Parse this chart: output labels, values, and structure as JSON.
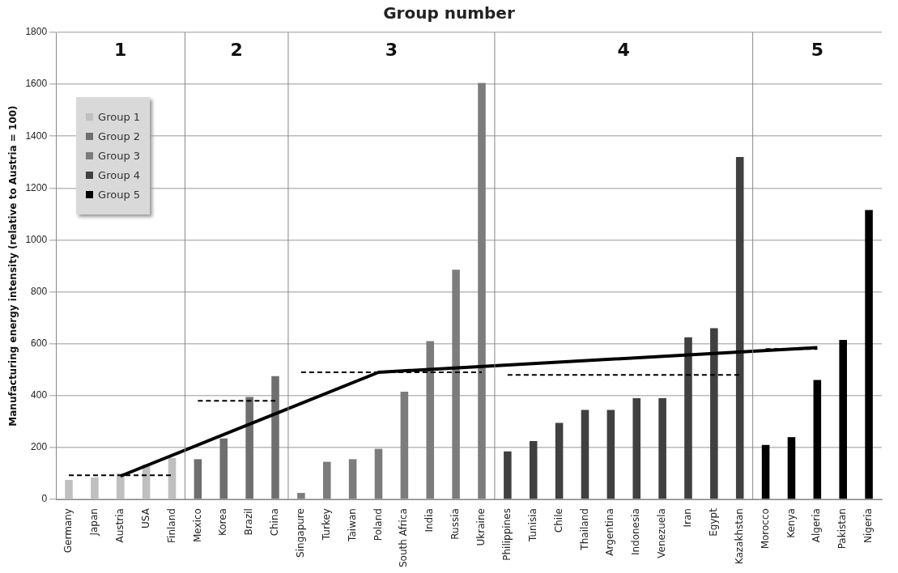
{
  "chart_data": {
    "type": "bar",
    "title": "Group number",
    "ylabel": "Manufacturing energy intensity (relative to Austria = 100)",
    "categories": [
      "Germany",
      "Japan",
      "Austria",
      "USA",
      "Finland",
      "Mexico",
      "Korea",
      "Brazil",
      "China",
      "Singapure",
      "Turkey",
      "Taiwan",
      "Poland",
      "South Africa",
      "India",
      "Russia",
      "Ukraine",
      "Philippines",
      "Tunisia",
      "Chile",
      "Thailand",
      "Argentina",
      "Indonesia",
      "Venezuela",
      "Iran",
      "Egypt",
      "Kazakhstan",
      "Morocco",
      "Kenya",
      "Algeria",
      "Pakistan",
      "Nigeria"
    ],
    "series": [
      {
        "name": "Group 1",
        "color": "#bfbfbf",
        "x": [
          "Germany",
          "Japan",
          "Austria",
          "USA",
          "Finland"
        ],
        "values": [
          75,
          85,
          100,
          135,
          160
        ]
      },
      {
        "name": "Group 2",
        "color": "#6f6f6f",
        "x": [
          "Mexico",
          "Korea",
          "Brazil",
          "China"
        ],
        "values": [
          155,
          235,
          395,
          475
        ]
      },
      {
        "name": "Group 3",
        "color": "#7c7c7c",
        "x": [
          "Singapure",
          "Turkey",
          "Taiwan",
          "Poland",
          "South Africa",
          "India",
          "Russia",
          "Ukraine"
        ],
        "values": [
          25,
          145,
          155,
          195,
          415,
          610,
          885,
          1605
        ]
      },
      {
        "name": "Group 4",
        "color": "#404040",
        "x": [
          "Philippines",
          "Tunisia",
          "Chile",
          "Thailand",
          "Argentina",
          "Indonesia",
          "Venezuela",
          "Iran",
          "Egypt",
          "Kazakhstan"
        ],
        "values": [
          185,
          225,
          295,
          345,
          345,
          390,
          390,
          625,
          660,
          1320
        ]
      },
      {
        "name": "Group 5",
        "color": "#000000",
        "x": [
          "Morocco",
          "Kenya",
          "Algeria",
          "Pakistan",
          "Nigeria"
        ],
        "values": [
          210,
          240,
          460,
          615,
          1115
        ]
      },
      {
        "type": "line",
        "color": "#000000",
        "line_style": "solid",
        "x": [
          "Austria",
          "Poland",
          "Algeria"
        ],
        "values": [
          90,
          490,
          585
        ]
      },
      {
        "type": "line",
        "color": "#000000",
        "line_style": "dashed",
        "x": [
          "Germany",
          "Finland"
        ],
        "values": [
          93,
          93
        ]
      },
      {
        "type": "line",
        "color": "#000000",
        "line_style": "dashed",
        "x": [
          "Mexico",
          "China"
        ],
        "values": [
          380,
          380
        ]
      },
      {
        "type": "line",
        "color": "#000000",
        "line_style": "dashed",
        "x": [
          "Singapure",
          "Ukraine"
        ],
        "values": [
          490,
          490
        ]
      },
      {
        "type": "line",
        "color": "#000000",
        "line_style": "dashed",
        "x": [
          "Philippines",
          "Kazakhstan"
        ],
        "values": [
          480,
          480
        ]
      },
      {
        "type": "line",
        "color": "#000000",
        "line_style": "dashed",
        "x": [
          "Morocco",
          "Algeria"
        ],
        "values": [
          580,
          580
        ]
      }
    ],
    "annotations": [
      "1",
      "2",
      "3",
      "4",
      "5"
    ],
    "ylim": [
      0,
      1800
    ],
    "yticks": [
      0,
      200,
      400,
      600,
      800,
      1000,
      1200,
      1400,
      1600,
      1800
    ],
    "grid": "y",
    "legend": "top left",
    "marker": "none"
  }
}
